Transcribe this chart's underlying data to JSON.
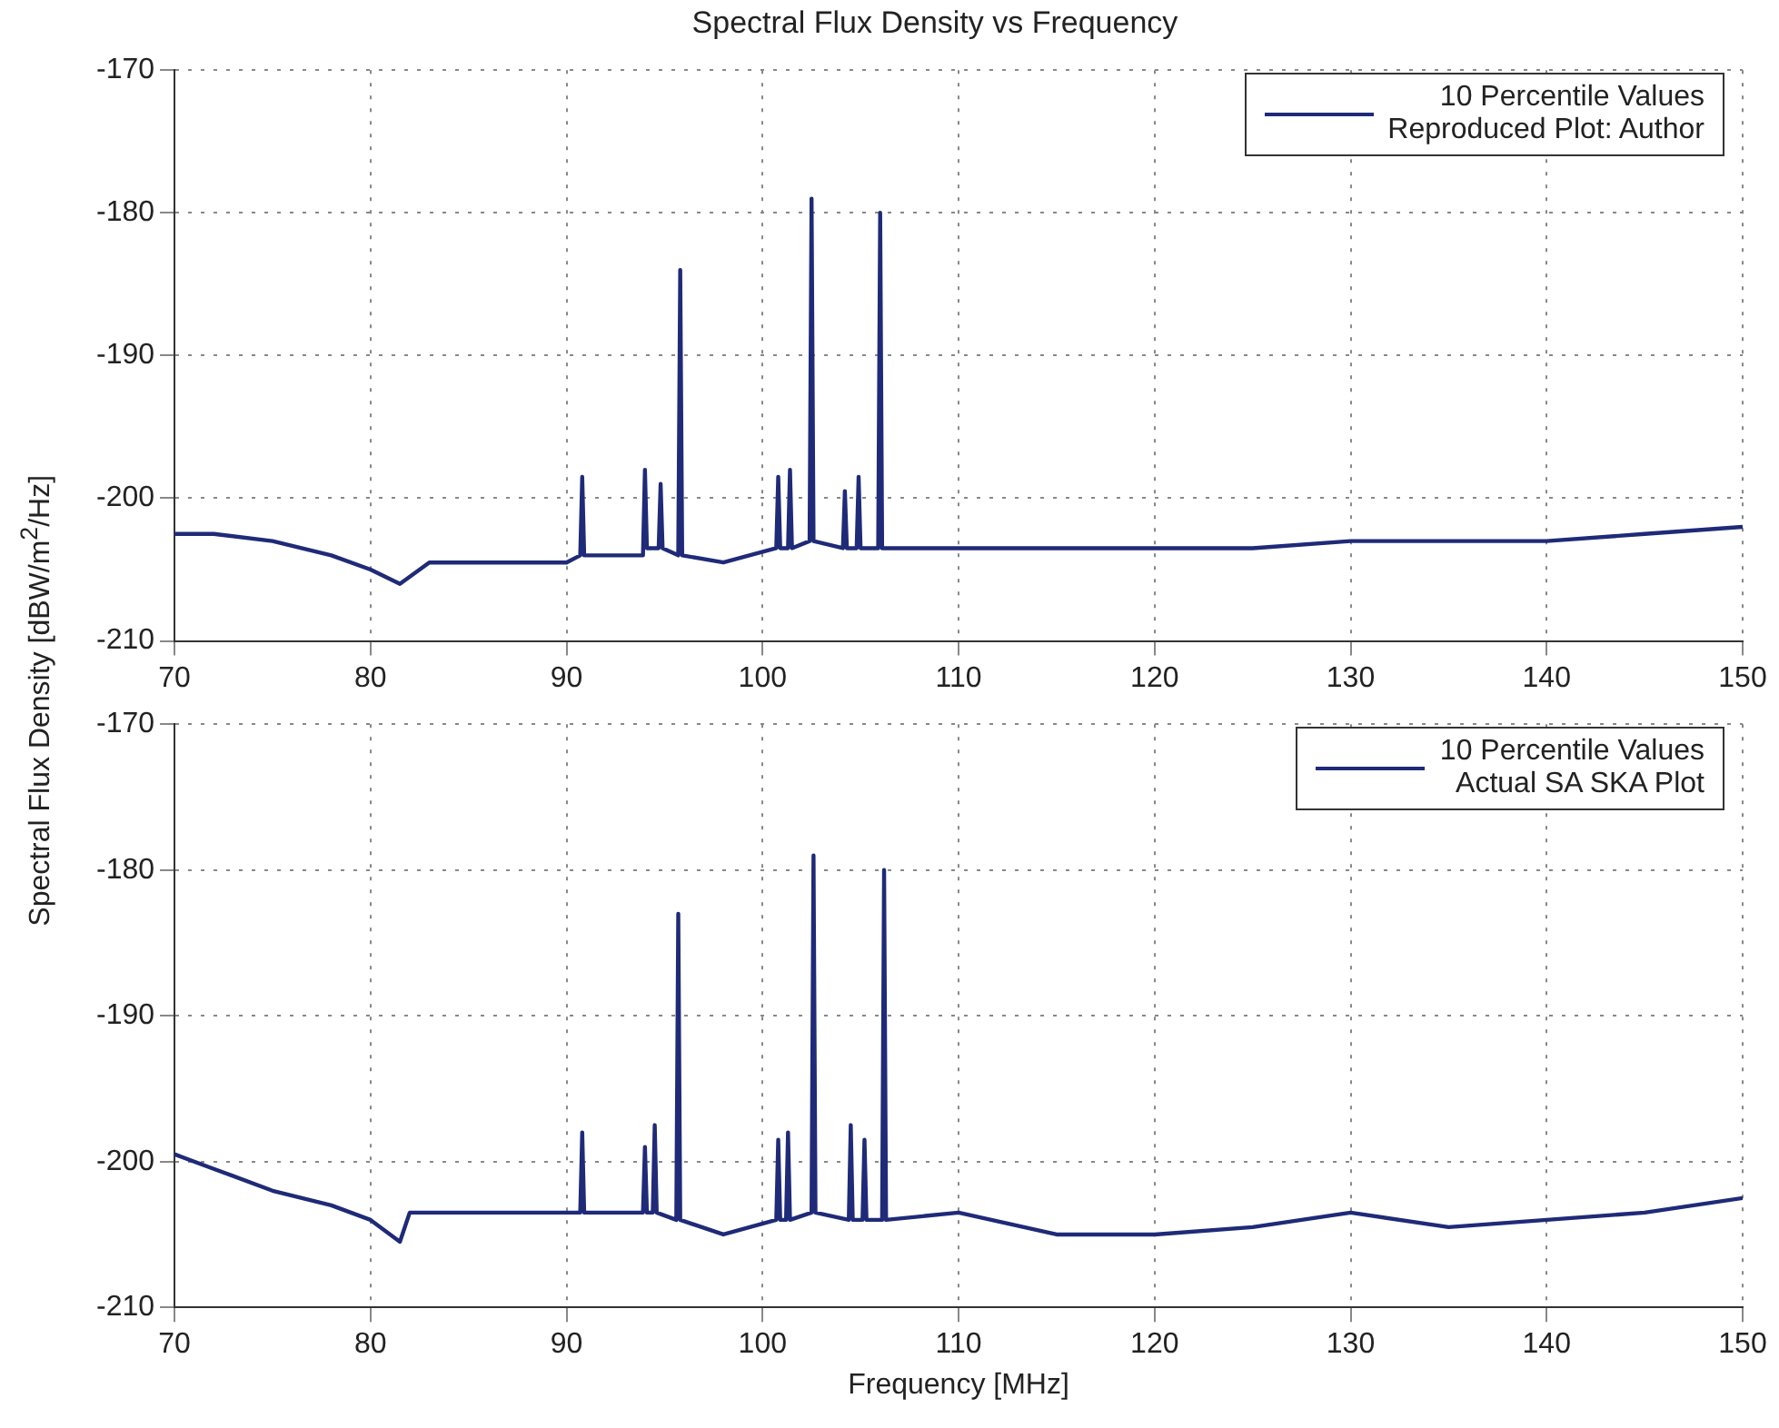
{
  "chart_data": [
    {
      "type": "line",
      "title": "Spectral Flux Density vs Frequency",
      "ylabel": "Spectral Flux Density [dBW/m$^{2}$/Hz]",
      "xlim": [
        70,
        150
      ],
      "ylim": [
        -210,
        -170
      ],
      "xticks": [
        70,
        80,
        90,
        100,
        110,
        120,
        130,
        140,
        150
      ],
      "yticks": [
        -210,
        -200,
        -190,
        -180,
        -170
      ],
      "grid": true,
      "legend": "top right",
      "marker": "none",
      "line_style": "solid",
      "series": [
        {
          "name": "10 Percentile Values\nReproduced Plot: Author",
          "color": "#1f2a78",
          "x": [
            70,
            72,
            75,
            78,
            80,
            81.5,
            83,
            86,
            90,
            90.7,
            90.8,
            90.9,
            93.9,
            94,
            94.1,
            94.7,
            94.8,
            94.9,
            95.7,
            95.8,
            95.9,
            98,
            100.7,
            100.8,
            100.9,
            101.3,
            101.4,
            101.5,
            102.4,
            102.5,
            102.6,
            104.1,
            104.2,
            104.3,
            104.8,
            104.9,
            105,
            105.9,
            106,
            106.1,
            110,
            115,
            120,
            125,
            130,
            135,
            140,
            145,
            150
          ],
          "values": [
            -202.5,
            -202.5,
            -203,
            -204,
            -205,
            -206,
            -204.5,
            -204.5,
            -204.5,
            -204,
            -198.5,
            -204,
            -204,
            -198,
            -203.5,
            -203.5,
            -199,
            -203.5,
            -204,
            -184,
            -204,
            -204.5,
            -203.5,
            -198.5,
            -203.5,
            -203.5,
            -198,
            -203.5,
            -203,
            -179,
            -203,
            -203.5,
            -199.5,
            -203.5,
            -203.5,
            -198.5,
            -203.5,
            -203.5,
            -180,
            -203.5,
            -203.5,
            -203.5,
            -203.5,
            -203.5,
            -203,
            -203,
            -203,
            -202.5,
            -202
          ]
        }
      ]
    },
    {
      "type": "line",
      "xlabel": "Frequency [MHz]",
      "xlim": [
        70,
        150
      ],
      "ylim": [
        -210,
        -170
      ],
      "xticks": [
        70,
        80,
        90,
        100,
        110,
        120,
        130,
        140,
        150
      ],
      "yticks": [
        -210,
        -200,
        -190,
        -180,
        -170
      ],
      "grid": true,
      "legend": "top right",
      "marker": "none",
      "line_style": "solid",
      "series": [
        {
          "name": "10 Percentile Values\nActual SA SKA Plot",
          "color": "#1f2a78",
          "x": [
            70,
            72,
            75,
            78,
            80,
            81.5,
            82,
            86,
            90,
            90.7,
            90.8,
            90.9,
            93.9,
            94,
            94.1,
            94.4,
            94.5,
            94.6,
            95.6,
            95.7,
            95.8,
            98,
            100.7,
            100.8,
            100.9,
            101.2,
            101.3,
            101.4,
            102.5,
            102.6,
            102.7,
            104.4,
            104.5,
            104.6,
            105.1,
            105.2,
            105.3,
            106.1,
            106.2,
            106.3,
            110,
            115,
            120,
            125,
            130,
            135,
            140,
            145,
            150
          ],
          "values": [
            -199.5,
            -200.5,
            -202,
            -203,
            -204,
            -205.5,
            -203.5,
            -203.5,
            -203.5,
            -203.5,
            -198,
            -203.5,
            -203.5,
            -199,
            -203.5,
            -203.5,
            -197.5,
            -203.5,
            -204,
            -183,
            -204,
            -205,
            -204,
            -198.5,
            -204,
            -204,
            -198,
            -204,
            -203.5,
            -179,
            -203.5,
            -204,
            -197.5,
            -204,
            -204,
            -198.5,
            -204,
            -204,
            -180,
            -204,
            -203.5,
            -205,
            -205,
            -204.5,
            -203.5,
            -204.5,
            -204,
            -203.5,
            -202.5
          ]
        }
      ]
    }
  ]
}
